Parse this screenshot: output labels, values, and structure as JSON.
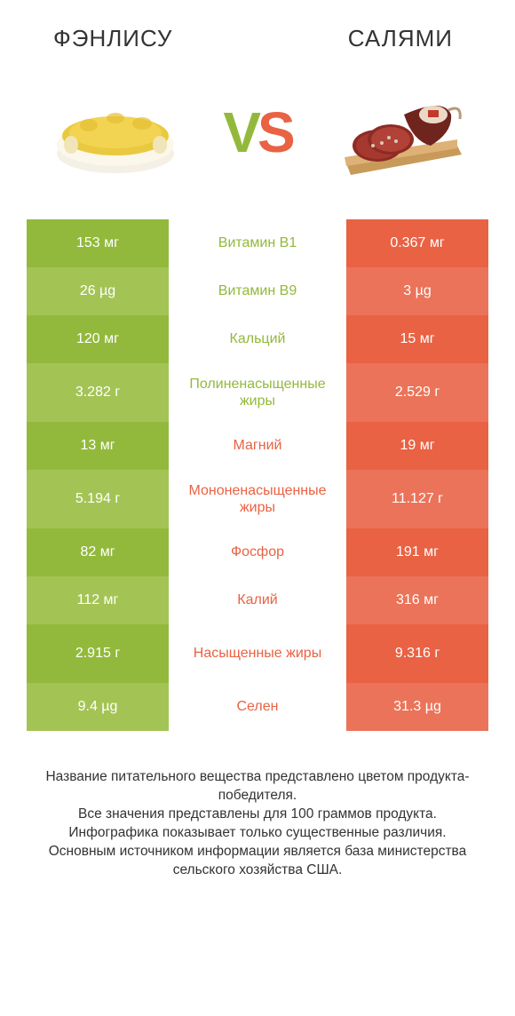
{
  "header": {
    "left_title": "ФЭНЛИСУ",
    "right_title": "САЛЯМИ"
  },
  "vs": {
    "v": "V",
    "s": "S"
  },
  "colors": {
    "green_a": "#93b93c",
    "green_b": "#a3c454",
    "orange_a": "#e96244",
    "orange_b": "#eb7359",
    "text": "#333333",
    "bg": "#ffffff"
  },
  "rows": [
    {
      "left": "153 мг",
      "mid": "Витамин B1",
      "right": "0.367 мг",
      "winner": "left",
      "tall": false
    },
    {
      "left": "26 µg",
      "mid": "Витамин B9",
      "right": "3 µg",
      "winner": "left",
      "tall": false
    },
    {
      "left": "120 мг",
      "mid": "Кальций",
      "right": "15 мг",
      "winner": "left",
      "tall": false
    },
    {
      "left": "3.282 г",
      "mid": "Полиненасыщенные жиры",
      "right": "2.529 г",
      "winner": "left",
      "tall": true
    },
    {
      "left": "13 мг",
      "mid": "Магний",
      "right": "19 мг",
      "winner": "right",
      "tall": false
    },
    {
      "left": "5.194 г",
      "mid": "Мононенасыщенные жиры",
      "right": "11.127 г",
      "winner": "right",
      "tall": true
    },
    {
      "left": "82 мг",
      "mid": "Фосфор",
      "right": "191 мг",
      "winner": "right",
      "tall": false
    },
    {
      "left": "112 мг",
      "mid": "Калий",
      "right": "316 мг",
      "winner": "right",
      "tall": false
    },
    {
      "left": "2.915 г",
      "mid": "Насыщенные жиры",
      "right": "9.316 г",
      "winner": "right",
      "tall": true
    },
    {
      "left": "9.4 µg",
      "mid": "Селен",
      "right": "31.3 µg",
      "winner": "right",
      "tall": false
    }
  ],
  "footer": {
    "l1": "Название питательного вещества представлено цветом продукта-победителя.",
    "l2": "Все значения представлены для 100 граммов продукта.",
    "l3": "Инфографика показывает только существенные различия.",
    "l4": "Основным источником информации является база министерства сельского хозяйства США."
  }
}
